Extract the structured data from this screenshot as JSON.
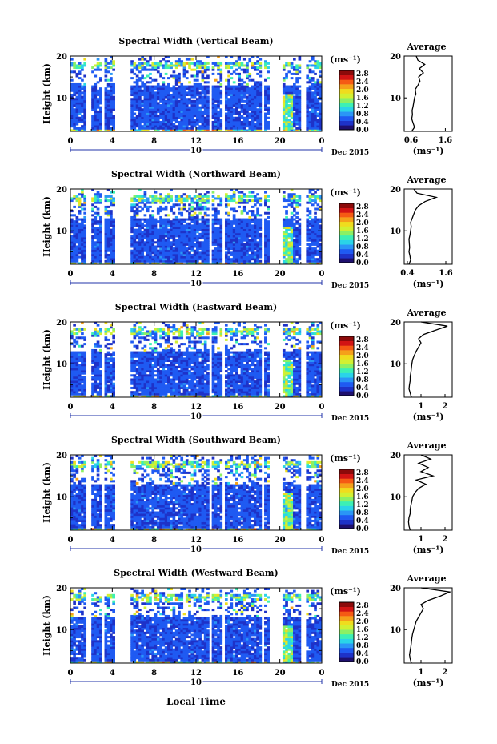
{
  "figure": {
    "xlabel": "Local Time",
    "average_title": "Average",
    "ylabel": "Height (km)",
    "date_label": "Dec 2015",
    "day_label": "10",
    "unit_label": "(ms⁻¹)"
  },
  "colorscale": {
    "ticks": [
      "2.8",
      "2.4",
      "2.0",
      "1.6",
      "1.2",
      "0.8",
      "0.4",
      "0.0"
    ],
    "colors": [
      "#1e0f6e",
      "#1e32c8",
      "#1f5af2",
      "#2a96f6",
      "#2ad4e8",
      "#3cf0b4",
      "#8cf064",
      "#d2f032",
      "#f0dc1e",
      "#f5a01a",
      "#f55a14",
      "#d21414",
      "#8c0a0a"
    ]
  },
  "chart_data": [
    {
      "type": "heatmap",
      "title": "Spectral Width (Vertical Beam)",
      "xlabel": "Local Time",
      "ylabel": "Height (km)",
      "x_ticks": [
        "0",
        "4",
        "8",
        "12",
        "16",
        "20",
        "0"
      ],
      "y_ticks": [
        "20",
        "10"
      ],
      "xlim": [
        0,
        24
      ],
      "ylim": [
        2,
        20
      ],
      "zlim": [
        0,
        3
      ],
      "z_unit": "(ms⁻¹)",
      "colorbar_ticks": [
        "2.8",
        "2.4",
        "2.0",
        "1.6",
        "1.2",
        "0.8",
        "0.4",
        "0.0"
      ],
      "date": "10 Dec 2015",
      "data_gaps_hours": [
        [
          1.6,
          2.0
        ],
        [
          2.9,
          3.2
        ],
        [
          4.2,
          5.8
        ],
        [
          13.2,
          13.6
        ],
        [
          14.4,
          14.8
        ],
        [
          18.2,
          18.6
        ],
        [
          18.9,
          20.2
        ],
        [
          22.0,
          22.4
        ]
      ],
      "average_profile": {
        "title": "Average",
        "x_ticks": [
          "0.6",
          "1.6"
        ],
        "xlim": [
          0.4,
          1.8
        ],
        "x_unit": "(ms⁻¹)",
        "y_ticks": [
          "20",
          "10"
        ],
        "height_km": [
          2,
          3,
          4,
          5,
          6,
          7,
          8,
          9,
          10,
          11,
          12,
          13,
          14,
          15,
          16,
          17,
          18,
          19,
          20
        ],
        "values": [
          0.62,
          0.7,
          0.66,
          0.62,
          0.64,
          0.63,
          0.66,
          0.68,
          0.7,
          0.74,
          0.72,
          0.8,
          0.86,
          0.82,
          0.96,
          0.84,
          1.0,
          0.8,
          0.75
        ]
      }
    },
    {
      "type": "heatmap",
      "title": "Spectral Width (Northward Beam)",
      "xlabel": "Local Time",
      "ylabel": "Height (km)",
      "x_ticks": [
        "0",
        "4",
        "8",
        "12",
        "16",
        "20",
        "0"
      ],
      "y_ticks": [
        "20",
        "10"
      ],
      "xlim": [
        0,
        24
      ],
      "ylim": [
        2,
        20
      ],
      "zlim": [
        0,
        3
      ],
      "z_unit": "(ms⁻¹)",
      "colorbar_ticks": [
        "2.8",
        "2.4",
        "2.0",
        "1.6",
        "1.2",
        "0.8",
        "0.4",
        "0.0"
      ],
      "date": "10 Dec 2015",
      "data_gaps_hours": [
        [
          1.6,
          2.0
        ],
        [
          2.9,
          3.2
        ],
        [
          4.2,
          5.8
        ],
        [
          13.2,
          13.6
        ],
        [
          14.4,
          14.8
        ],
        [
          18.2,
          18.6
        ],
        [
          18.9,
          20.2
        ],
        [
          22.0,
          22.4
        ]
      ],
      "average_profile": {
        "title": "Average",
        "x_ticks": [
          "0.4",
          "1.6"
        ],
        "xlim": [
          0.3,
          1.8
        ],
        "x_unit": "(ms⁻¹)",
        "y_ticks": [
          "20",
          "10"
        ],
        "height_km": [
          2,
          3,
          4,
          5,
          6,
          7,
          8,
          9,
          10,
          11,
          12,
          13,
          14,
          15,
          16,
          17,
          18,
          19,
          20
        ],
        "values": [
          0.45,
          0.5,
          0.48,
          0.45,
          0.47,
          0.46,
          0.45,
          0.48,
          0.5,
          0.52,
          0.5,
          0.55,
          0.6,
          0.65,
          0.75,
          0.95,
          1.3,
          0.7,
          0.6
        ]
      }
    },
    {
      "type": "heatmap",
      "title": "Spectral Width (Eastward Beam)",
      "xlabel": "Local Time",
      "ylabel": "Height (km)",
      "x_ticks": [
        "0",
        "4",
        "8",
        "12",
        "16",
        "20",
        "0"
      ],
      "y_ticks": [
        "20",
        "10"
      ],
      "xlim": [
        0,
        24
      ],
      "ylim": [
        2,
        20
      ],
      "zlim": [
        0,
        3
      ],
      "z_unit": "(ms⁻¹)",
      "colorbar_ticks": [
        "2.8",
        "2.4",
        "2.0",
        "1.6",
        "1.2",
        "0.8",
        "0.4",
        "0.0"
      ],
      "date": "10 Dec 2015",
      "data_gaps_hours": [
        [
          1.6,
          2.0
        ],
        [
          2.9,
          3.2
        ],
        [
          4.2,
          5.8
        ],
        [
          13.2,
          13.6
        ],
        [
          14.4,
          14.8
        ],
        [
          18.2,
          18.6
        ],
        [
          18.9,
          20.2
        ],
        [
          22.0,
          22.4
        ]
      ],
      "average_profile": {
        "title": "Average",
        "x_ticks": [
          "1",
          "2"
        ],
        "xlim": [
          0.3,
          2.3
        ],
        "x_unit": "(ms⁻¹)",
        "y_ticks": [
          "20",
          "10"
        ],
        "height_km": [
          2,
          3,
          4,
          5,
          6,
          7,
          8,
          9,
          10,
          11,
          12,
          13,
          14,
          15,
          16,
          17,
          18,
          19,
          20
        ],
        "values": [
          0.6,
          0.55,
          0.5,
          0.52,
          0.55,
          0.55,
          0.58,
          0.6,
          0.62,
          0.65,
          0.72,
          0.8,
          0.9,
          1.0,
          0.9,
          1.1,
          1.6,
          2.1,
          1.0
        ]
      }
    },
    {
      "type": "heatmap",
      "title": "Spectral Width (Southward Beam)",
      "xlabel": "Local Time",
      "ylabel": "Height (km)",
      "x_ticks": [
        "0",
        "4",
        "8",
        "12",
        "16",
        "20",
        "0"
      ],
      "y_ticks": [
        "20",
        "10"
      ],
      "xlim": [
        0,
        24
      ],
      "ylim": [
        2,
        20
      ],
      "zlim": [
        0,
        3
      ],
      "z_unit": "(ms⁻¹)",
      "colorbar_ticks": [
        "2.8",
        "2.4",
        "2.0",
        "1.6",
        "1.2",
        "0.8",
        "0.4",
        "0.0"
      ],
      "date": "10 Dec 2015",
      "data_gaps_hours": [
        [
          1.6,
          2.0
        ],
        [
          2.9,
          3.2
        ],
        [
          4.2,
          5.8
        ],
        [
          13.2,
          13.6
        ],
        [
          14.4,
          14.8
        ],
        [
          18.2,
          18.6
        ],
        [
          18.9,
          20.2
        ],
        [
          22.0,
          22.4
        ]
      ],
      "average_profile": {
        "title": "Average",
        "x_ticks": [
          "1",
          "2"
        ],
        "xlim": [
          0.3,
          2.3
        ],
        "x_unit": "(ms⁻¹)",
        "y_ticks": [
          "20",
          "10"
        ],
        "height_km": [
          2,
          3,
          4,
          5,
          6,
          7,
          8,
          9,
          10,
          11,
          12,
          13,
          14,
          15,
          16,
          17,
          18,
          19,
          20
        ],
        "values": [
          0.55,
          0.5,
          0.48,
          0.5,
          0.55,
          0.55,
          0.58,
          0.62,
          0.65,
          0.75,
          0.9,
          1.2,
          0.8,
          1.5,
          1.0,
          1.3,
          0.9,
          1.4,
          1.0
        ]
      }
    },
    {
      "type": "heatmap",
      "title": "Spectral Width (Westward Beam)",
      "xlabel": "Local Time",
      "ylabel": "Height (km)",
      "x_ticks": [
        "0",
        "4",
        "8",
        "12",
        "16",
        "20",
        "0"
      ],
      "y_ticks": [
        "20",
        "10"
      ],
      "xlim": [
        0,
        24
      ],
      "ylim": [
        2,
        20
      ],
      "zlim": [
        0,
        3
      ],
      "z_unit": "(ms⁻¹)",
      "colorbar_ticks": [
        "2.8",
        "2.4",
        "2.0",
        "1.6",
        "1.2",
        "0.8",
        "0.4",
        "0.0"
      ],
      "date": "10 Dec 2015",
      "data_gaps_hours": [
        [
          1.6,
          2.0
        ],
        [
          2.9,
          3.2
        ],
        [
          4.2,
          5.8
        ],
        [
          13.2,
          13.6
        ],
        [
          14.4,
          14.8
        ],
        [
          18.2,
          18.6
        ],
        [
          18.9,
          20.2
        ],
        [
          22.0,
          22.4
        ]
      ],
      "average_profile": {
        "title": "Average",
        "x_ticks": [
          "1",
          "2"
        ],
        "xlim": [
          0.3,
          2.3
        ],
        "x_unit": "(ms⁻¹)",
        "y_ticks": [
          "20",
          "10"
        ],
        "height_km": [
          2,
          3,
          4,
          5,
          6,
          7,
          8,
          9,
          10,
          11,
          12,
          13,
          14,
          15,
          16,
          17,
          18,
          19,
          20
        ],
        "values": [
          0.6,
          0.55,
          0.52,
          0.55,
          0.58,
          0.6,
          0.62,
          0.65,
          0.7,
          0.75,
          0.8,
          0.9,
          1.0,
          1.1,
          1.0,
          1.3,
          1.8,
          2.2,
          1.0
        ]
      }
    }
  ]
}
